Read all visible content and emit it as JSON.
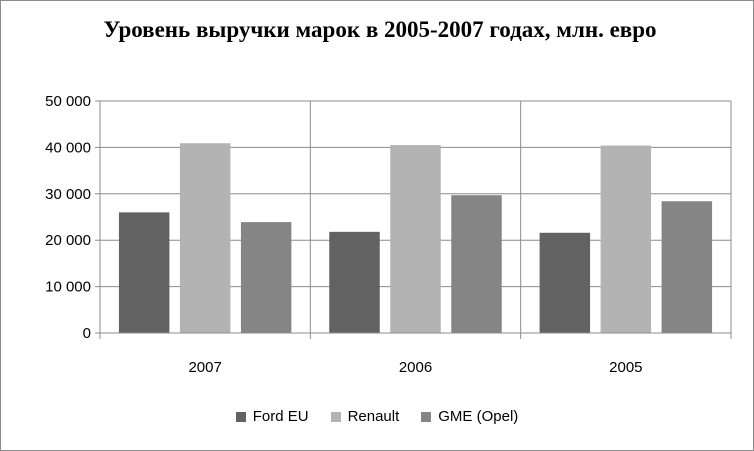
{
  "chart_data": {
    "type": "bar",
    "title": "Уровень выручки марок в 2005-2007 годах, млн. евро",
    "categories": [
      "2007",
      "2006",
      "2005"
    ],
    "series": [
      {
        "name": "Ford EU",
        "values": [
          26000,
          21800,
          21600
        ],
        "color": "#626262"
      },
      {
        "name": "Renault",
        "values": [
          40900,
          40500,
          40400
        ],
        "color": "#b3b3b3"
      },
      {
        "name": "GME (Opel)",
        "values": [
          23900,
          29700,
          28400
        ],
        "color": "#858585"
      }
    ],
    "ylim": [
      0,
      50000
    ],
    "yticks": [
      0,
      10000,
      20000,
      30000,
      40000,
      50000
    ],
    "ytick_labels": [
      "0",
      "10 000",
      "20 000",
      "30 000",
      "40 000",
      "50 000"
    ],
    "xlabel": "",
    "ylabel": "",
    "grid": "horizontal",
    "legend_position": "bottom"
  }
}
